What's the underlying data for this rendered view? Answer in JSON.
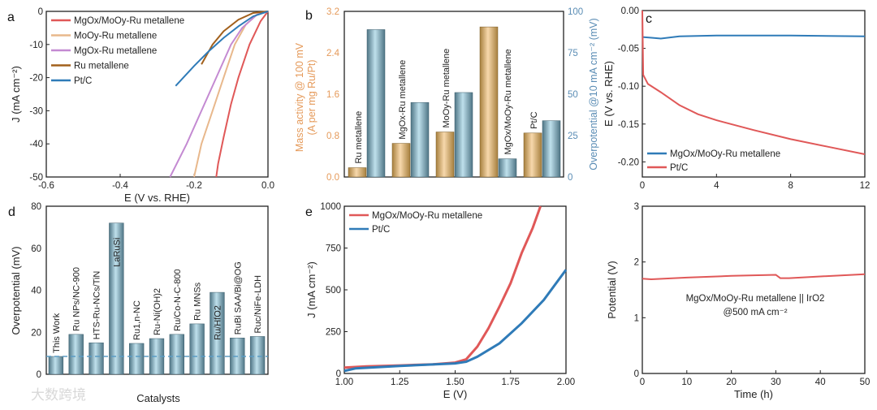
{
  "watermark": "大数跨境",
  "chart_data": [
    {
      "id": "a",
      "panel_label": "a",
      "type": "line",
      "xlabel": "E (V vs. RHE)",
      "ylabel": "J (mA cm⁻²)",
      "xlim": [
        -0.6,
        0
      ],
      "ylim": [
        -50,
        0
      ],
      "xticks": [
        -0.6,
        -0.4,
        -0.2,
        0.0
      ],
      "xtick_labels": [
        "-0.6",
        "-0.4",
        "-0.2",
        "0.0"
      ],
      "yticks": [
        -50,
        -40,
        -30,
        -20,
        -10,
        0
      ],
      "ytick_labels": [
        "-50",
        "-40",
        "-30",
        "-20",
        "-10",
        "0"
      ],
      "legend": "top-left",
      "series": [
        {
          "name": "MgOx/MoOy-Ru metallene",
          "color": "#e05858",
          "points": [
            [
              0,
              0
            ],
            [
              -0.02,
              -3
            ],
            [
              -0.05,
              -10
            ],
            [
              -0.08,
              -20
            ],
            [
              -0.1,
              -28
            ],
            [
              -0.12,
              -38
            ],
            [
              -0.135,
              -46
            ],
            [
              -0.14,
              -50
            ]
          ]
        },
        {
          "name": "MoOy-Ru metallene",
          "color": "#e8b88c",
          "points": [
            [
              0,
              0
            ],
            [
              -0.03,
              -1
            ],
            [
              -0.06,
              -4
            ],
            [
              -0.09,
              -10
            ],
            [
              -0.12,
              -20
            ],
            [
              -0.15,
              -30
            ],
            [
              -0.18,
              -40
            ],
            [
              -0.2,
              -50
            ]
          ]
        },
        {
          "name": "MgOx-Ru metallene",
          "color": "#c48ad2",
          "points": [
            [
              0,
              0
            ],
            [
              -0.03,
              -1
            ],
            [
              -0.07,
              -5
            ],
            [
              -0.1,
              -10
            ],
            [
              -0.14,
              -20
            ],
            [
              -0.18,
              -30
            ],
            [
              -0.22,
              -40
            ],
            [
              -0.265,
              -50
            ]
          ]
        },
        {
          "name": "Ru metallene",
          "color": "#a2601c",
          "points": [
            [
              0,
              0
            ],
            [
              -0.04,
              -0.5
            ],
            [
              -0.08,
              -2.5
            ],
            [
              -0.12,
              -6
            ],
            [
              -0.15,
              -10
            ],
            [
              -0.18,
              -16
            ]
          ]
        },
        {
          "name": "Pt/C",
          "color": "#2f7bb8",
          "points": [
            [
              0,
              0
            ],
            [
              -0.04,
              -1.5
            ],
            [
              -0.08,
              -4.5
            ],
            [
              -0.12,
              -8
            ],
            [
              -0.16,
              -12
            ],
            [
              -0.2,
              -16.5
            ],
            [
              -0.25,
              -22.5
            ]
          ]
        }
      ]
    },
    {
      "id": "b",
      "panel_label": "b",
      "type": "bar",
      "ylabel_left": "Mass activity @ 100 mV",
      "ylabel_left2": "(A per mg Ru/Pt)",
      "ylabel_right": "Overpotential @10 mA cm⁻² (mV)",
      "ylim_left": [
        0,
        3.2
      ],
      "ylim_right": [
        0,
        100
      ],
      "yticks_left": [
        "0.0",
        "0.8",
        "1.6",
        "2.4",
        "3.2"
      ],
      "yticks_right": [
        "0",
        "25",
        "50",
        "75",
        "100"
      ],
      "categories": [
        "Ru metallene",
        "MgOx-Ru metallene",
        "MoOy-Ru metallene",
        "MgOx/MoOy-Ru metallene",
        "Pt/C"
      ],
      "series": [
        {
          "name": "Mass activity",
          "axis": "left",
          "color": "#c9a062",
          "values": [
            0.18,
            0.65,
            0.87,
            2.9,
            0.85
          ]
        },
        {
          "name": "Overpotential",
          "axis": "right",
          "color": "#6f98ab",
          "values": [
            89,
            45,
            51,
            11,
            34
          ]
        }
      ],
      "left_axis_color": "#e59a5a",
      "right_axis_color": "#5b8db5"
    },
    {
      "id": "c",
      "panel_label": "c",
      "type": "line",
      "xlabel": "",
      "ylabel": "E (V vs. RHE)",
      "xlim": [
        0,
        12
      ],
      "ylim": [
        -0.22,
        0
      ],
      "xticks": [
        0,
        4,
        8,
        12
      ],
      "xtick_labels": [
        "0",
        "4",
        "8",
        "12"
      ],
      "yticks": [
        -0.2,
        -0.15,
        -0.1,
        -0.05,
        0
      ],
      "ytick_labels": [
        "-0.20",
        "-0.15",
        "-0.10",
        "-0.05",
        "0.00"
      ],
      "legend": "bottom-left",
      "series": [
        {
          "name": "MgOx/MoOy-Ru metallene",
          "color": "#2f7bb8",
          "points": [
            [
              0,
              -0.035
            ],
            [
              0.5,
              -0.036
            ],
            [
              1,
              -0.037
            ],
            [
              2,
              -0.034
            ],
            [
              4,
              -0.033
            ],
            [
              8,
              -0.033
            ],
            [
              12,
              -0.034
            ]
          ]
        },
        {
          "name": "Pt/C",
          "color": "#e05858",
          "points": [
            [
              0,
              0
            ],
            [
              0.05,
              -0.085
            ],
            [
              0.3,
              -0.097
            ],
            [
              1,
              -0.108
            ],
            [
              2,
              -0.125
            ],
            [
              3,
              -0.137
            ],
            [
              4,
              -0.145
            ],
            [
              6,
              -0.158
            ],
            [
              8,
              -0.17
            ],
            [
              10,
              -0.18
            ],
            [
              12,
              -0.19
            ]
          ]
        }
      ]
    },
    {
      "id": "d",
      "panel_label": "d",
      "type": "bar",
      "xlabel": "Catalysts",
      "ylabel": "Overpotential (mV)",
      "ylim": [
        0,
        80
      ],
      "yticks": [
        "0",
        "20",
        "40",
        "60",
        "80"
      ],
      "categories": [
        "This Work",
        "Ru NPs/NC-900",
        "HTS-Ru-NCs/TiN",
        "LaRuSi",
        "Ru1,n-NC",
        "Ru-Ni(OH)2",
        "Ru/Co-N-C-800",
        "Ru MNSs",
        "Ru/HfO2",
        "RuBi SAA/Bi@OG",
        "Ruc/NiFe-LDH"
      ],
      "values": [
        8.5,
        19,
        15,
        72,
        14.7,
        17,
        19,
        24,
        39,
        17.3,
        18
      ],
      "reference_line": 8.5,
      "color": "#6f98ab"
    },
    {
      "id": "e",
      "panel_label": "e",
      "type": "line",
      "xlabel": "E (V)",
      "ylabel": "J (mA cm⁻²)",
      "xlim": [
        1,
        2
      ],
      "ylim": [
        0,
        1000
      ],
      "xticks": [
        1,
        1.25,
        1.5,
        1.75,
        2
      ],
      "xtick_labels": [
        "1.00",
        "1.25",
        "1.50",
        "1.75",
        "2.00"
      ],
      "yticks": [
        0,
        250,
        500,
        750,
        1000
      ],
      "ytick_labels": [
        "0",
        "250",
        "500",
        "750",
        "1000"
      ],
      "legend": "top-left",
      "series": [
        {
          "name": "MgOx/MoOy-Ru metallene",
          "color": "#e05858",
          "points": [
            [
              1,
              35
            ],
            [
              1.1,
              42
            ],
            [
              1.25,
              48
            ],
            [
              1.4,
              55
            ],
            [
              1.5,
              65
            ],
            [
              1.55,
              85
            ],
            [
              1.6,
              160
            ],
            [
              1.65,
              270
            ],
            [
              1.7,
              400
            ],
            [
              1.75,
              540
            ],
            [
              1.8,
              720
            ],
            [
              1.85,
              870
            ],
            [
              1.885,
              1000
            ]
          ]
        },
        {
          "name": "Pt/C",
          "color": "#2f7bb8",
          "points": [
            [
              1,
              15
            ],
            [
              1.05,
              30
            ],
            [
              1.25,
              45
            ],
            [
              1.5,
              60
            ],
            [
              1.55,
              70
            ],
            [
              1.6,
              100
            ],
            [
              1.7,
              180
            ],
            [
              1.8,
              300
            ],
            [
              1.9,
              440
            ],
            [
              2,
              620
            ]
          ]
        }
      ]
    },
    {
      "id": "f",
      "panel_label": "",
      "type": "line",
      "xlabel": "Time (h)",
      "ylabel": "Potential (V)",
      "xlim": [
        0,
        50
      ],
      "ylim": [
        0,
        3
      ],
      "xticks": [
        0,
        10,
        20,
        30,
        40,
        50
      ],
      "xtick_labels": [
        "0",
        "10",
        "20",
        "30",
        "40",
        "50"
      ],
      "yticks": [
        0,
        1,
        2,
        3
      ],
      "ytick_labels": [
        "0",
        "1",
        "2",
        "3"
      ],
      "annotation": [
        "MgOx/MoOy-Ru metallene || IrO2",
        "@500 mA cm⁻²"
      ],
      "series": [
        {
          "name": "MgOx/MoOy-Ru metallene || IrO2",
          "color": "#e05858",
          "points": [
            [
              0,
              1.7
            ],
            [
              2,
              1.69
            ],
            [
              10,
              1.72
            ],
            [
              20,
              1.75
            ],
            [
              30,
              1.77
            ],
            [
              31,
              1.71
            ],
            [
              33,
              1.71
            ],
            [
              40,
              1.74
            ],
            [
              50,
              1.78
            ]
          ]
        }
      ]
    }
  ]
}
